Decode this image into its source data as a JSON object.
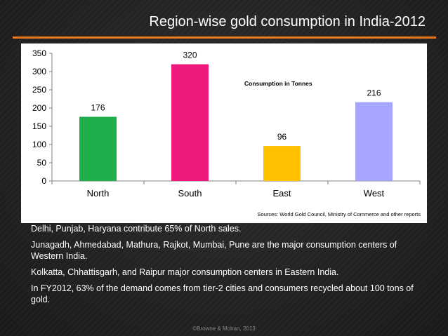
{
  "slide": {
    "title": "Region-wise gold consumption in India-2012",
    "bullets": [
      "Delhi, Punjab, Haryana contribute  65% of North sales.",
      "Junagadh, Ahmedabad, Mathura, Rajkot, Mumbai, Pune are the major consumption centers of Western India.",
      "Kolkatta, Chhattisgarh, and Raipur major consumption centers in Eastern India.",
      "In FY2012, 63% of the demand comes from  tier-2 cities and consumers recycled about 100 tons of gold."
    ],
    "footer": "©Browne & Mohan, 2013",
    "accent_color": "#e87a1e"
  },
  "chart_data": {
    "type": "bar",
    "categories": [
      "North",
      "South",
      "East",
      "West"
    ],
    "values": [
      176,
      320,
      96,
      216
    ],
    "colors": [
      "#1fb04b",
      "#ee1b7d",
      "#ffc000",
      "#a6a6ff"
    ],
    "ylim": [
      0,
      350
    ],
    "yticks": [
      0,
      50,
      100,
      150,
      200,
      250,
      300,
      350
    ],
    "annotation": "Consumption in Tonnes",
    "source": "Sources: World Gold Council, Ministry of Commerce and other reports",
    "plot_background": "#ffffff",
    "grid": false
  }
}
